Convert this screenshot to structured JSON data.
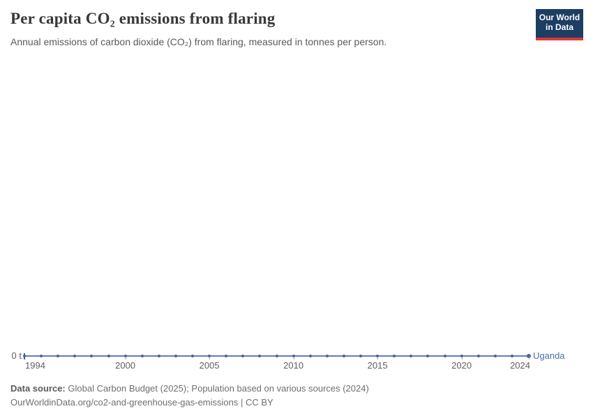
{
  "header": {
    "title": "Per capita CO₂ emissions from flaring",
    "subtitle": "Annual emissions of carbon dioxide (CO₂) from flaring, measured in tonnes per person.",
    "logo": {
      "line1": "Our World",
      "line2": "in Data"
    }
  },
  "chart_data": {
    "type": "line",
    "title": "Per capita CO₂ emissions from flaring",
    "x": [
      1994,
      1995,
      1996,
      1997,
      1998,
      1999,
      2000,
      2001,
      2002,
      2003,
      2004,
      2005,
      2006,
      2007,
      2008,
      2009,
      2010,
      2011,
      2012,
      2013,
      2014,
      2015,
      2016,
      2017,
      2018,
      2019,
      2020,
      2021,
      2022,
      2023,
      2024
    ],
    "series": [
      {
        "name": "Uganda",
        "values": [
          0,
          0,
          0,
          0,
          0,
          0,
          0,
          0,
          0,
          0,
          0,
          0,
          0,
          0,
          0,
          0,
          0,
          0,
          0,
          0,
          0,
          0,
          0,
          0,
          0,
          0,
          0,
          0,
          0,
          0,
          0
        ],
        "line_color": "#6080b0",
        "point_color": "#44639c",
        "label_color": "#4c70ab"
      }
    ],
    "x_ticks": [
      1994,
      2000,
      2005,
      2010,
      2015,
      2020,
      2024
    ],
    "xlim": [
      1994,
      2024
    ],
    "ylim": [
      0,
      0
    ],
    "y_zero_label": "0 t",
    "grid": false,
    "legend_position": "end-of-line"
  },
  "footer": {
    "source_label": "Data source:",
    "sources": "Global Carbon Budget (2025); Population based on various sources (2024)",
    "citation": "OurWorldinData.org/co2-and-greenhouse-gas-emissions | CC BY"
  },
  "colors": {
    "logo_bg": "#1d3d63",
    "logo_accent": "#d93a34",
    "axis_tick": "#a4a4a4",
    "axis_label": "#5e5e5e"
  }
}
